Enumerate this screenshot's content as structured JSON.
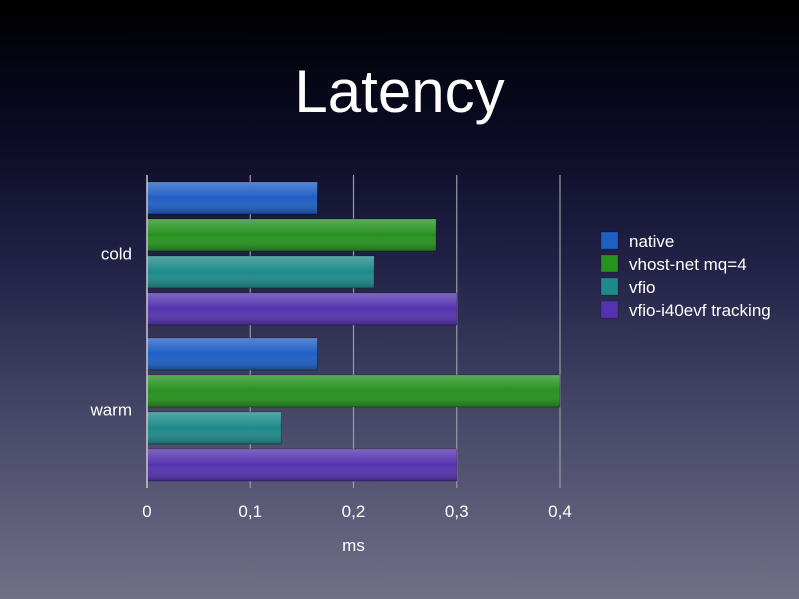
{
  "chart_data": {
    "type": "bar",
    "orientation": "horizontal",
    "title": "Latency",
    "xlabel": "ms",
    "ylabel": "",
    "categories": [
      "cold",
      "warm"
    ],
    "series": [
      {
        "name": "native",
        "color": "#1f5fc4",
        "values": [
          0.165,
          0.165
        ]
      },
      {
        "name": "vhost-net mq=4",
        "color": "#27921f",
        "values": [
          0.28,
          0.4
        ]
      },
      {
        "name": "vfio",
        "color": "#1e8a8a",
        "values": [
          0.22,
          0.13
        ]
      },
      {
        "name": "vfio-i40evf tracking",
        "color": "#5533b0",
        "values": [
          0.3,
          0.3
        ]
      }
    ],
    "xlim": [
      0,
      0.4
    ],
    "xticks": [
      "0",
      "0,1",
      "0,2",
      "0,3",
      "0,4"
    ],
    "grid": true,
    "legend_position": "right"
  }
}
